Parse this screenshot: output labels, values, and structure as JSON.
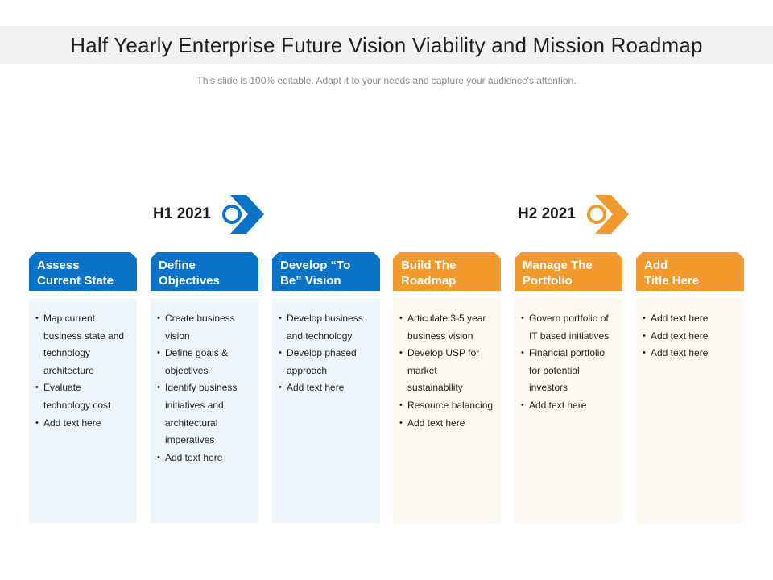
{
  "title": "Half Yearly Enterprise Future Vision Viability and Mission Roadmap",
  "subtitle": "This slide is 100% editable. Adapt it to your needs and capture your audience's attention.",
  "colors": {
    "blue": "#0b73c7",
    "orange": "#f29a2e"
  },
  "phases": [
    {
      "label": "H1 2021",
      "color": "blue",
      "icon": "chevron-arrow-icon"
    },
    {
      "label": "H2 2021",
      "color": "orange",
      "icon": "chevron-arrow-icon"
    }
  ],
  "columns": [
    {
      "title": "Assess\nCurrent State",
      "color": "blue",
      "items": [
        "Map current business state and technology architecture",
        "Evaluate technology cost",
        "Add text here"
      ]
    },
    {
      "title": "Define\nObjectives",
      "color": "blue",
      "items": [
        "Create business vision",
        "Define goals & objectives",
        "Identify business initiatives and architectural imperatives",
        "Add text here"
      ]
    },
    {
      "title": "Develop “To\nBe” Vision",
      "color": "blue",
      "items": [
        "Develop business and technology",
        "Develop phased approach",
        "Add text here"
      ]
    },
    {
      "title": "Build The\nRoadmap",
      "color": "orange",
      "items": [
        "Articulate 3-5 year business vision",
        "Develop USP for market sustainability",
        "Resource balancing",
        "Add text here"
      ]
    },
    {
      "title": "Manage The\nPortfolio",
      "color": "orange",
      "items": [
        "Govern portfolio of IT based initiatives",
        "Financial portfolio for potential investors",
        "Add text here"
      ]
    },
    {
      "title": "Add\nTitle Here",
      "color": "orange",
      "items": [
        "Add text here",
        "Add text here",
        "Add text here"
      ]
    }
  ]
}
